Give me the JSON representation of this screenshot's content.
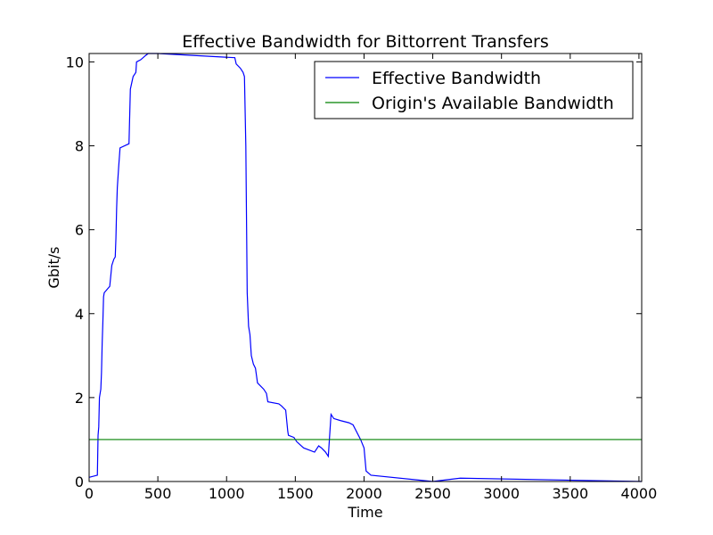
{
  "chart_data": {
    "type": "line",
    "title": "Effective Bandwidth for Bittorrent Transfers",
    "xlabel": "Time",
    "ylabel": "Gbit/s",
    "xlim": [
      0,
      4020
    ],
    "ylim": [
      0,
      10.2
    ],
    "xticks": [
      0,
      500,
      1000,
      1500,
      2000,
      2500,
      3000,
      3500,
      4000
    ],
    "yticks": [
      0,
      2,
      4,
      6,
      8,
      10
    ],
    "legend_position": "top-right",
    "grid": false,
    "series": [
      {
        "name": "Effective Bandwidth",
        "color": "#0000ff",
        "points": [
          [
            0,
            0.1
          ],
          [
            60,
            0.15
          ],
          [
            65,
            1.1
          ],
          [
            70,
            1.3
          ],
          [
            75,
            2.0
          ],
          [
            85,
            2.2
          ],
          [
            90,
            2.6
          ],
          [
            95,
            3.3
          ],
          [
            100,
            3.8
          ],
          [
            105,
            4.4
          ],
          [
            110,
            4.5
          ],
          [
            150,
            4.65
          ],
          [
            165,
            5.15
          ],
          [
            180,
            5.3
          ],
          [
            190,
            5.35
          ],
          [
            195,
            5.8
          ],
          [
            200,
            6.5
          ],
          [
            205,
            7.0
          ],
          [
            215,
            7.5
          ],
          [
            225,
            7.95
          ],
          [
            290,
            8.05
          ],
          [
            300,
            9.35
          ],
          [
            310,
            9.5
          ],
          [
            320,
            9.65
          ],
          [
            340,
            9.75
          ],
          [
            345,
            10.0
          ],
          [
            375,
            10.05
          ],
          [
            410,
            10.15
          ],
          [
            430,
            10.2
          ],
          [
            500,
            10.2
          ],
          [
            1060,
            10.1
          ],
          [
            1070,
            9.95
          ],
          [
            1100,
            9.85
          ],
          [
            1120,
            9.75
          ],
          [
            1130,
            9.65
          ],
          [
            1140,
            8.0
          ],
          [
            1150,
            4.5
          ],
          [
            1160,
            3.7
          ],
          [
            1170,
            3.5
          ],
          [
            1180,
            3.0
          ],
          [
            1195,
            2.8
          ],
          [
            1210,
            2.7
          ],
          [
            1225,
            2.35
          ],
          [
            1270,
            2.2
          ],
          [
            1290,
            2.1
          ],
          [
            1300,
            1.9
          ],
          [
            1380,
            1.85
          ],
          [
            1400,
            1.8
          ],
          [
            1430,
            1.7
          ],
          [
            1445,
            1.2
          ],
          [
            1450,
            1.1
          ],
          [
            1490,
            1.05
          ],
          [
            1510,
            0.95
          ],
          [
            1560,
            0.8
          ],
          [
            1640,
            0.7
          ],
          [
            1670,
            0.85
          ],
          [
            1690,
            0.8
          ],
          [
            1720,
            0.7
          ],
          [
            1740,
            0.6
          ],
          [
            1760,
            1.6
          ],
          [
            1780,
            1.5
          ],
          [
            1830,
            1.45
          ],
          [
            1890,
            1.4
          ],
          [
            1920,
            1.35
          ],
          [
            1975,
            1.0
          ],
          [
            2000,
            0.8
          ],
          [
            2015,
            0.25
          ],
          [
            2050,
            0.15
          ],
          [
            2500,
            0.0
          ],
          [
            2700,
            0.08
          ],
          [
            4020,
            0.0
          ]
        ]
      },
      {
        "name": "Origin's Available Bandwidth",
        "color": "#008000",
        "points": [
          [
            0,
            1.0
          ],
          [
            4020,
            1.0
          ]
        ]
      }
    ]
  }
}
